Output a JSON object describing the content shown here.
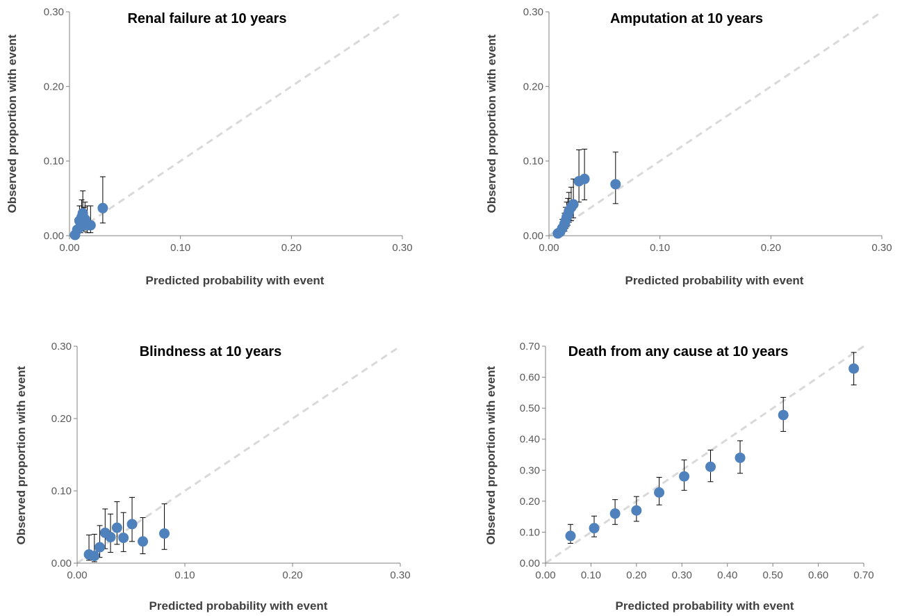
{
  "chart_data": [
    {
      "type": "scatter",
      "title": "Renal failure at 10 years",
      "xlabel": "Predicted probability with event",
      "ylabel": "Observed proportion with event",
      "xlim": [
        0,
        0.3
      ],
      "ylim": [
        0,
        0.3
      ],
      "xticks": [
        "0.00",
        "0.10",
        "0.20",
        "0.30"
      ],
      "yticks": [
        "0.00",
        "0.10",
        "0.20",
        "0.30"
      ],
      "reference_line": "dashed diagonal y = x",
      "grid": false,
      "marker_color": "#4f81bd",
      "reference_color": "#d9d9d9",
      "points": [
        {
          "x": 0.005,
          "y": 0.001,
          "lo": 0.0,
          "hi": 0.003
        },
        {
          "x": 0.007,
          "y": 0.008,
          "lo": 0.002,
          "hi": 0.022
        },
        {
          "x": 0.009,
          "y": 0.02,
          "lo": 0.008,
          "hi": 0.04
        },
        {
          "x": 0.01,
          "y": 0.012,
          "lo": 0.004,
          "hi": 0.03
        },
        {
          "x": 0.011,
          "y": 0.025,
          "lo": 0.01,
          "hi": 0.048
        },
        {
          "x": 0.012,
          "y": 0.03,
          "lo": 0.012,
          "hi": 0.06
        },
        {
          "x": 0.013,
          "y": 0.018,
          "lo": 0.006,
          "hi": 0.038
        },
        {
          "x": 0.014,
          "y": 0.022,
          "lo": 0.008,
          "hi": 0.045
        },
        {
          "x": 0.016,
          "y": 0.014,
          "lo": 0.004,
          "hi": 0.04
        },
        {
          "x": 0.019,
          "y": 0.014,
          "lo": 0.004,
          "hi": 0.04
        },
        {
          "x": 0.03,
          "y": 0.037,
          "lo": 0.017,
          "hi": 0.079
        }
      ]
    },
    {
      "type": "scatter",
      "title": "Amputation at 10 years",
      "xlabel": "Predicted probability with event",
      "ylabel": "Observed proportion with event",
      "xlim": [
        0,
        0.3
      ],
      "ylim": [
        0,
        0.3
      ],
      "xticks": [
        "0.00",
        "0.10",
        "0.20",
        "0.30"
      ],
      "yticks": [
        "0.00",
        "0.10",
        "0.20",
        "0.30"
      ],
      "reference_line": "dashed diagonal y = x",
      "grid": false,
      "marker_color": "#4f81bd",
      "reference_color": "#d9d9d9",
      "points": [
        {
          "x": 0.008,
          "y": 0.003,
          "lo": 0.001,
          "hi": 0.008
        },
        {
          "x": 0.01,
          "y": 0.005,
          "lo": 0.002,
          "hi": 0.012
        },
        {
          "x": 0.012,
          "y": 0.01,
          "lo": 0.004,
          "hi": 0.022
        },
        {
          "x": 0.014,
          "y": 0.016,
          "lo": 0.006,
          "hi": 0.03
        },
        {
          "x": 0.015,
          "y": 0.02,
          "lo": 0.01,
          "hi": 0.038
        },
        {
          "x": 0.016,
          "y": 0.025,
          "lo": 0.012,
          "hi": 0.045
        },
        {
          "x": 0.017,
          "y": 0.028,
          "lo": 0.014,
          "hi": 0.05
        },
        {
          "x": 0.018,
          "y": 0.033,
          "lo": 0.018,
          "hi": 0.058
        },
        {
          "x": 0.02,
          "y": 0.038,
          "lo": 0.02,
          "hi": 0.065
        },
        {
          "x": 0.022,
          "y": 0.042,
          "lo": 0.024,
          "hi": 0.076
        },
        {
          "x": 0.027,
          "y": 0.073,
          "lo": 0.045,
          "hi": 0.115
        },
        {
          "x": 0.032,
          "y": 0.076,
          "lo": 0.048,
          "hi": 0.116
        },
        {
          "x": 0.06,
          "y": 0.069,
          "lo": 0.043,
          "hi": 0.112
        }
      ]
    },
    {
      "type": "scatter",
      "title": "Blindness at 10 years",
      "xlabel": "Predicted probability with event",
      "ylabel": "Observed proportion with event",
      "xlim": [
        0,
        0.3
      ],
      "ylim": [
        0,
        0.3
      ],
      "xticks": [
        "0.00",
        "0.10",
        "0.20",
        "0.30"
      ],
      "yticks": [
        "0.00",
        "0.10",
        "0.20",
        "0.30"
      ],
      "reference_line": "dashed diagonal y = x",
      "grid": false,
      "marker_color": "#4f81bd",
      "reference_color": "#d9d9d9",
      "points": [
        {
          "x": 0.011,
          "y": 0.012,
          "lo": 0.004,
          "hi": 0.039
        },
        {
          "x": 0.016,
          "y": 0.01,
          "lo": 0.002,
          "hi": 0.04
        },
        {
          "x": 0.021,
          "y": 0.022,
          "lo": 0.008,
          "hi": 0.052
        },
        {
          "x": 0.026,
          "y": 0.042,
          "lo": 0.02,
          "hi": 0.075
        },
        {
          "x": 0.031,
          "y": 0.036,
          "lo": 0.015,
          "hi": 0.068
        },
        {
          "x": 0.037,
          "y": 0.049,
          "lo": 0.026,
          "hi": 0.085
        },
        {
          "x": 0.043,
          "y": 0.035,
          "lo": 0.016,
          "hi": 0.07
        },
        {
          "x": 0.051,
          "y": 0.054,
          "lo": 0.03,
          "hi": 0.091
        },
        {
          "x": 0.061,
          "y": 0.03,
          "lo": 0.013,
          "hi": 0.063
        },
        {
          "x": 0.081,
          "y": 0.041,
          "lo": 0.019,
          "hi": 0.082
        }
      ]
    },
    {
      "type": "scatter",
      "title": "Death from any cause at 10 years",
      "xlabel": "Predicted probability with event",
      "ylabel": "Observed proportion with event",
      "xlim": [
        0,
        0.7
      ],
      "ylim": [
        0,
        0.7
      ],
      "xticks": [
        "0.00",
        "0.10",
        "0.20",
        "0.30",
        "0.40",
        "0.50",
        "0.60",
        "0.70"
      ],
      "yticks": [
        "0.00",
        "0.10",
        "0.20",
        "0.30",
        "0.40",
        "0.50",
        "0.60",
        "0.70"
      ],
      "reference_line": "dashed diagonal y = x",
      "grid": false,
      "marker_color": "#4f81bd",
      "reference_color": "#d9d9d9",
      "points": [
        {
          "x": 0.055,
          "y": 0.088,
          "lo": 0.064,
          "hi": 0.125
        },
        {
          "x": 0.107,
          "y": 0.113,
          "lo": 0.085,
          "hi": 0.152
        },
        {
          "x": 0.153,
          "y": 0.16,
          "lo": 0.125,
          "hi": 0.205
        },
        {
          "x": 0.2,
          "y": 0.17,
          "lo": 0.135,
          "hi": 0.215
        },
        {
          "x": 0.25,
          "y": 0.228,
          "lo": 0.188,
          "hi": 0.277
        },
        {
          "x": 0.305,
          "y": 0.28,
          "lo": 0.235,
          "hi": 0.333
        },
        {
          "x": 0.363,
          "y": 0.311,
          "lo": 0.263,
          "hi": 0.365
        },
        {
          "x": 0.428,
          "y": 0.34,
          "lo": 0.29,
          "hi": 0.395
        },
        {
          "x": 0.523,
          "y": 0.478,
          "lo": 0.425,
          "hi": 0.535
        },
        {
          "x": 0.678,
          "y": 0.628,
          "lo": 0.575,
          "hi": 0.68
        }
      ]
    }
  ]
}
